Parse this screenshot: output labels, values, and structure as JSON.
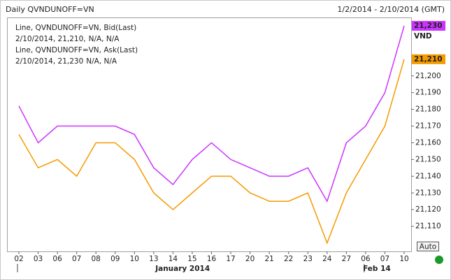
{
  "chart_data": {
    "type": "line",
    "title": "Daily QVNDUNOFF=VN",
    "date_range": "1/2/2014 - 2/10/2014 (GMT)",
    "currency": "VND",
    "categories": [
      "02",
      "03",
      "06",
      "07",
      "08",
      "09",
      "10",
      "13",
      "14",
      "15",
      "16",
      "17",
      "20",
      "21",
      "22",
      "23",
      "24",
      "27",
      "06",
      "07",
      "10"
    ],
    "months": [
      {
        "label": "January 2014",
        "start": 0,
        "end": 17
      },
      {
        "label": "Feb 14",
        "start": 18,
        "end": 20
      }
    ],
    "series": [
      {
        "name": "Line, QVNDUNOFF=VN, Bid(Last)",
        "last": [
          "2/10/2014, 21,210,",
          "N/A, N/A"
        ],
        "color": "#f59a00",
        "values": [
          21165,
          21145,
          21150,
          21140,
          21160,
          21160,
          21150,
          21130,
          21120,
          21130,
          21140,
          21140,
          21130,
          21125,
          21125,
          21130,
          21100,
          21130,
          21150,
          21170,
          21210
        ],
        "value_labels": [
          null,
          null,
          null,
          null,
          null,
          null,
          null,
          null,
          null,
          null,
          null,
          null,
          null,
          null,
          null,
          null,
          null,
          null,
          null,
          null,
          "21,210"
        ]
      },
      {
        "name": "Line, QVNDUNOFF=VN, Ask(Last)",
        "last": [
          "2/10/2014, 21,230",
          "N/A, N/A"
        ],
        "color": "#cc33ff",
        "values": [
          21182,
          21160,
          21170,
          21170,
          21170,
          21170,
          21165,
          21145,
          21135,
          21150,
          21160,
          21150,
          21145,
          21140,
          21140,
          21145,
          21125,
          21160,
          21170,
          21190,
          21230
        ],
        "value_labels": [
          null,
          null,
          null,
          null,
          null,
          null,
          null,
          null,
          null,
          null,
          null,
          null,
          null,
          null,
          null,
          null,
          null,
          null,
          null,
          null,
          "21,230"
        ]
      }
    ],
    "ylim": [
      21095,
      21235
    ],
    "yticks": [
      {
        "value": 21110,
        "label": "21,110"
      },
      {
        "value": 21120,
        "label": "21,120"
      },
      {
        "value": 21130,
        "label": "21,130"
      },
      {
        "value": 21140,
        "label": "21,140"
      },
      {
        "value": 21150,
        "label": "21,150"
      },
      {
        "value": 21160,
        "label": "21,160"
      },
      {
        "value": 21170,
        "label": "21,170"
      },
      {
        "value": 21180,
        "label": "21,180"
      },
      {
        "value": 21190,
        "label": "21,190"
      },
      {
        "value": 21200,
        "label": "21,200"
      }
    ],
    "button": "Auto"
  }
}
